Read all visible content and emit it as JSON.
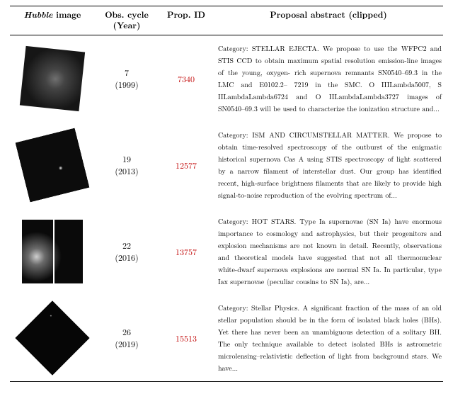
{
  "colors": {
    "prop_id": "#c00000",
    "rule": "#000000",
    "text": "#000000",
    "background": "#ffffff"
  },
  "typography": {
    "body_family": "CMU Serif / Latin Modern Roman (serif)",
    "header_fontsize_pt": 12,
    "abstract_fontsize_pt": 10,
    "abstract_line_height": 1.7,
    "abstract_align": "justify"
  },
  "headers": {
    "image_italic": "Hubble",
    "image_rest": " image",
    "cycle_line1": "Obs. cycle",
    "cycle_line2": "(Year)",
    "prop_id": "Prop. ID",
    "abstract": "Proposal abstract (clipped)"
  },
  "rows": [
    {
      "cycle": "7",
      "year": "(1999)",
      "prop_id": "7340",
      "abstract": "Category: STELLAR EJECTA. We propose to use the WFPC2 and STIS CCD to obtain maximum spatial resolution emission-line images of the young, oxygen- rich supernova remnants SN0540–69.3 in the LMC and E0102.2– 7219 in the SMC. O IIILambda5007, S IILambdaLambda6724 and O IILambdaLambda3727 images of SN0540–69.3 will be used to characterize the ionization structure and..."
    },
    {
      "cycle": "19",
      "year": "(2013)",
      "prop_id": "12577",
      "abstract": "Category: ISM AND CIRCUMSTELLAR MATTER. We propose to obtain time-resolved spectroscopy of the outburst of the enigmatic historical supernova Cas A using STIS spectroscopy of light scattered by a narrow filament of interstellar dust. Our group has identified recent, high-surface brightness filaments that are likely to provide high signal-to-noise reproduction of the evolving spectrum of..."
    },
    {
      "cycle": "22",
      "year": "(2016)",
      "prop_id": "13757",
      "abstract": "Category: HOT STARS. Type Ia supernovae (SN Ia) have enormous importance to cosmology and astrophysics, but their progenitors and explosion mechanisms are not known in detail. Recently, observations and theoretical models have suggested that not all thermonuclear white-dwarf supernova explosions are normal SN Ia. In particular, type Iax supernovae (peculiar cousins to SN Ia), are..."
    },
    {
      "cycle": "26",
      "year": "(2019)",
      "prop_id": "15513",
      "abstract": "Category: Stellar Physics. A significant fraction of the mass of an old stellar population should be in the form of isolated black holes (BHs). Yet there has never been an unambiguous detection of a solitary BH. The only technique available to detect isolated BHs is astrometric microlensing–relativistic deflection of light from background stars. We have..."
    }
  ]
}
